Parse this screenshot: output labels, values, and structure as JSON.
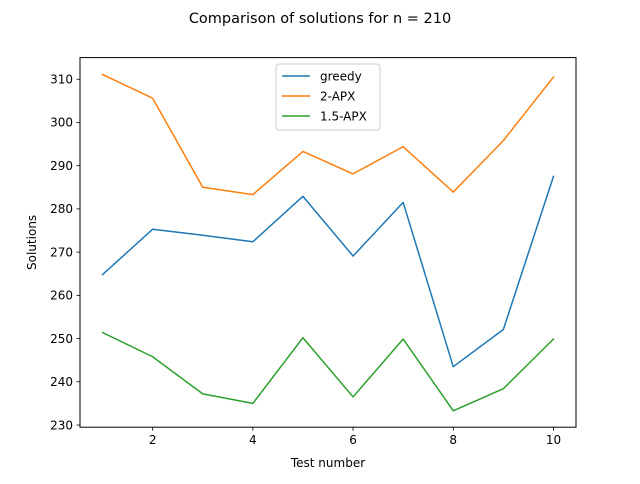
{
  "chart_data": {
    "type": "line",
    "title": "Comparison of solutions for n = 210",
    "xlabel": "Test number",
    "ylabel": "Solutions",
    "x": [
      1,
      2,
      3,
      4,
      5,
      6,
      7,
      8,
      9,
      10
    ],
    "xlim": [
      0.55,
      10.45
    ],
    "ylim": [
      229.5,
      315.0
    ],
    "xticks": [
      2,
      4,
      6,
      8,
      10
    ],
    "yticks": [
      230,
      240,
      250,
      260,
      270,
      280,
      290,
      300,
      310
    ],
    "grid": false,
    "legend_position": "top-center",
    "series": [
      {
        "name": "greedy",
        "color": "#1f77b4",
        "values": [
          264.8,
          275.3,
          273.9,
          272.4,
          282.9,
          269.1,
          281.5,
          243.5,
          252.1,
          287.5
        ]
      },
      {
        "name": "2-APX",
        "color": "#ff7f0e",
        "values": [
          311.1,
          305.6,
          285.0,
          283.3,
          293.3,
          288.1,
          294.4,
          283.9,
          295.8,
          310.5
        ]
      },
      {
        "name": "1.5-APX",
        "color": "#2ca02c",
        "values": [
          251.4,
          245.8,
          237.2,
          235.0,
          250.2,
          236.5,
          249.9,
          233.3,
          238.4,
          249.9
        ]
      }
    ]
  }
}
